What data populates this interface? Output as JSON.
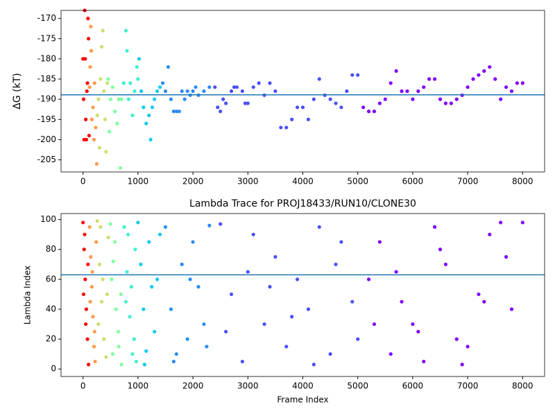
{
  "chart_data": [
    {
      "type": "scatter",
      "ylabel": "ΔG (kT)",
      "xlim": [
        -400,
        8400
      ],
      "ylim": [
        -208,
        -168
      ],
      "xticks": [
        0,
        1000,
        2000,
        3000,
        4000,
        5000,
        6000,
        7000,
        8000
      ],
      "yticks": [
        -205,
        -200,
        -195,
        -190,
        -185,
        -180,
        -175,
        -170
      ],
      "hline": -188.9,
      "hline_color": "#1f77b4",
      "series": [
        {
          "color": "#ff0000",
          "x": [
            0,
            10,
            20,
            30,
            40,
            50,
            60,
            70,
            80,
            90,
            100,
            110
          ],
          "values": [
            -180,
            -190,
            -200,
            -168,
            -180,
            -195,
            -200,
            -188,
            -186,
            -170,
            -175,
            -199
          ]
        },
        {
          "color": "#ff9a4a",
          "x": [
            120,
            130,
            140,
            150,
            160,
            180,
            200,
            210,
            230,
            250
          ],
          "values": [
            -187,
            -182,
            -172,
            -178,
            -195,
            -192,
            -200,
            -186,
            -197,
            -206
          ]
        },
        {
          "color": "#c8e070",
          "x": [
            260,
            280,
            300,
            320,
            340,
            360,
            380,
            400,
            420,
            440
          ],
          "values": [
            -194,
            -190,
            -202,
            -185,
            -177,
            -173,
            -188,
            -195,
            -203,
            -186
          ]
        },
        {
          "color": "#80ffa0",
          "x": [
            460,
            480,
            500,
            540,
            580,
            620,
            650,
            680,
            700
          ],
          "values": [
            -185,
            -198,
            -190,
            -187,
            -193,
            -196,
            -190,
            -207,
            -190
          ]
        },
        {
          "color": "#40f0d0",
          "x": [
            740,
            780,
            800,
            830,
            860,
            900,
            940,
            980,
            1000
          ],
          "values": [
            -186,
            -173,
            -178,
            -190,
            -186,
            -194,
            -188,
            -182,
            -185
          ]
        },
        {
          "color": "#10c8f0",
          "x": [
            1020,
            1060,
            1100,
            1150,
            1200,
            1230,
            1260,
            1300,
            1350,
            1400
          ],
          "values": [
            -180,
            -188,
            -192,
            -196,
            -194,
            -200,
            -192,
            -190,
            -188,
            -187
          ]
        },
        {
          "color": "#2b8cf4",
          "x": [
            1450,
            1500,
            1550,
            1600,
            1650,
            1700,
            1750,
            1800,
            1850,
            1900,
            1950,
            2000,
            2050,
            2100,
            2200,
            2300
          ],
          "values": [
            -186,
            -188,
            -182,
            -190,
            -193,
            -193,
            -193,
            -188,
            -190,
            -188,
            -189,
            -188,
            -187,
            -189,
            -188,
            -187
          ]
        },
        {
          "color": "#4a50f8",
          "x": [
            2400,
            2450,
            2500,
            2550,
            2600,
            2700,
            2750,
            2800,
            2900,
            2950,
            3000,
            3100,
            3200,
            3300,
            3400,
            3500,
            3600,
            3700,
            3800,
            3900,
            4000,
            4100,
            4200,
            4300,
            4400,
            4500,
            4600,
            4700,
            4800,
            4900,
            5000
          ],
          "values": [
            -187,
            -192,
            -193,
            -190,
            -191,
            -188,
            -187,
            -187,
            -188,
            -191,
            -191,
            -187,
            -186,
            -189,
            -186,
            -188,
            -197,
            -197,
            -195,
            -192,
            -192,
            -195,
            -190,
            -185,
            -189,
            -190,
            -191,
            -192,
            -188,
            -184,
            -184
          ]
        },
        {
          "color": "#8000ff",
          "x": [
            5100,
            5200,
            5300,
            5400,
            5500,
            5600,
            5700,
            5800,
            5900,
            6000,
            6100,
            6200,
            6300,
            6400,
            6500,
            6600,
            6700,
            6800,
            6900,
            7000,
            7100,
            7200,
            7300,
            7400,
            7500,
            7600,
            7700,
            7800,
            7900,
            8000
          ],
          "values": [
            -192,
            -193,
            -193,
            -191,
            -190,
            -186,
            -183,
            -188,
            -188,
            -190,
            -188,
            -187,
            -185,
            -185,
            -190,
            -191,
            -191,
            -190,
            -189,
            -187,
            -185,
            -184,
            -183,
            -182,
            -185,
            -190,
            -187,
            -188,
            -186,
            -186
          ]
        }
      ]
    },
    {
      "type": "scatter",
      "title": "Lambda Trace for PROJ18433/RUN10/CLONE30",
      "xlabel": "Frame Index",
      "ylabel": "Lambda Index",
      "xlim": [
        -400,
        8400
      ],
      "ylim": [
        -5,
        104
      ],
      "xticks": [
        0,
        1000,
        2000,
        3000,
        4000,
        5000,
        6000,
        7000,
        8000
      ],
      "yticks": [
        0,
        20,
        40,
        60,
        80,
        100
      ],
      "hline": 63,
      "hline_color": "#1f77b4",
      "series": [
        {
          "color": "#ff0000",
          "x": [
            0,
            20,
            40,
            60,
            80,
            100,
            10,
            50,
            90,
            30
          ],
          "values": [
            98,
            80,
            60,
            40,
            20,
            3,
            50,
            30,
            70,
            90
          ]
        },
        {
          "color": "#ff9a4a",
          "x": [
            120,
            140,
            160,
            180,
            200,
            220,
            240,
            130,
            170,
            210
          ],
          "values": [
            95,
            75,
            55,
            35,
            15,
            5,
            85,
            45,
            65,
            25
          ]
        },
        {
          "color": "#c8e070",
          "x": [
            260,
            300,
            340,
            380,
            420,
            460,
            280,
            360,
            440,
            320
          ],
          "values": [
            99,
            70,
            45,
            20,
            8,
            88,
            30,
            60,
            50,
            95
          ]
        },
        {
          "color": "#80ffa0",
          "x": [
            500,
            550,
            600,
            650,
            700,
            520,
            580,
            640,
            690,
            540
          ],
          "values": [
            97,
            72,
            40,
            15,
            3,
            60,
            85,
            25,
            50,
            10
          ]
        },
        {
          "color": "#40f0d0",
          "x": [
            750,
            800,
            850,
            900,
            950,
            780,
            880,
            930,
            820,
            970
          ],
          "values": [
            95,
            65,
            35,
            10,
            80,
            45,
            55,
            20,
            90,
            5
          ]
        },
        {
          "color": "#10c8f0",
          "x": [
            1000,
            1050,
            1100,
            1150,
            1200,
            1250,
            1300,
            1350,
            1400,
            1120
          ],
          "values": [
            98,
            70,
            40,
            12,
            85,
            55,
            25,
            60,
            90,
            3
          ]
        },
        {
          "color": "#2b8cf4",
          "x": [
            1500,
            1600,
            1700,
            1800,
            1900,
            2000,
            2100,
            2200,
            2300,
            1650,
            1950,
            2250
          ],
          "values": [
            95,
            40,
            10,
            70,
            20,
            85,
            55,
            30,
            96,
            5,
            60,
            15
          ]
        },
        {
          "color": "#4a50f8",
          "x": [
            2500,
            2700,
            2900,
            3100,
            3300,
            3500,
            3700,
            3900,
            4100,
            4300,
            4500,
            4700,
            4900,
            2600,
            3000,
            3400,
            3800,
            4200,
            4600,
            5000
          ],
          "values": [
            97,
            50,
            5,
            90,
            30,
            75,
            15,
            60,
            40,
            95,
            10,
            85,
            45,
            25,
            65,
            55,
            35,
            3,
            70,
            20
          ]
        },
        {
          "color": "#8000ff",
          "x": [
            5200,
            5400,
            5600,
            5800,
            6000,
            6200,
            6400,
            6600,
            6800,
            7000,
            7200,
            7400,
            7600,
            7800,
            8000,
            5300,
            5700,
            6100,
            6500,
            6900,
            7300,
            7700
          ],
          "values": [
            60,
            85,
            10,
            45,
            30,
            5,
            95,
            70,
            20,
            15,
            50,
            90,
            98,
            40,
            98,
            30,
            65,
            25,
            80,
            3,
            45,
            75
          ]
        }
      ]
    }
  ]
}
